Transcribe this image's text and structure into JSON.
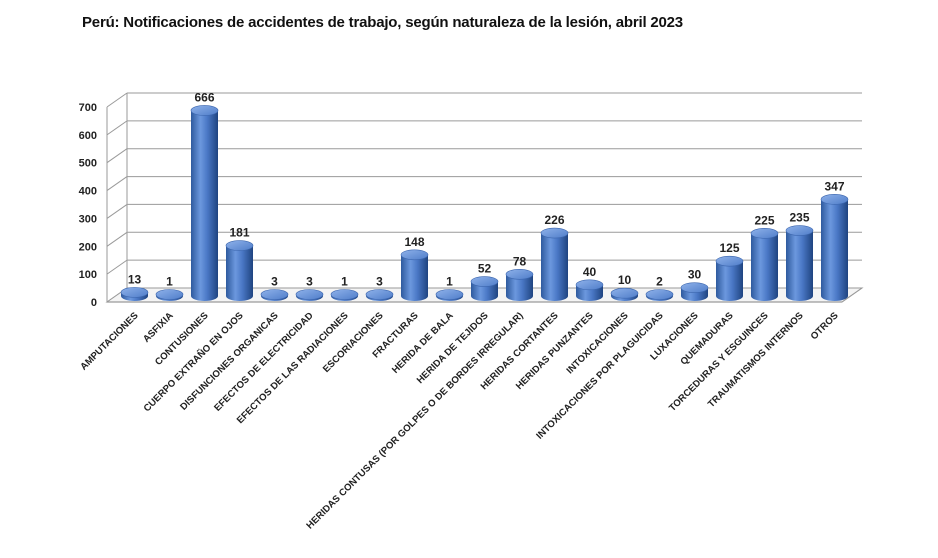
{
  "chart_data": {
    "type": "bar",
    "title": "Perú: Notificaciones de accidentes de trabajo, según naturaleza de la lesión, abril 2023",
    "xlabel": "",
    "ylabel": "",
    "ylim": [
      0,
      700
    ],
    "yticks": [
      "0",
      "100",
      "200",
      "300",
      "400",
      "500",
      "600",
      "700"
    ],
    "grid": true,
    "style": "3d-cylinder",
    "bar_color": "#4472C4",
    "categories": [
      "AMPUTACIONES",
      "ASFIXIA",
      "CONTUSIONES",
      "CUERPO EXTRAÑO EN OJOS",
      "DISFUNCIONES ORGANICAS",
      "EFECTOS DE ELECTRICIDAD",
      "EFECTOS DE LAS RADIACIONES",
      "ESCORIACIONES",
      "FRACTURAS",
      "HERIDA DE BALA",
      "HERIDA DE TEJIDOS",
      "HERIDAS CONTUSAS (POR GOLPES O DE BORDES IRREGULAR)",
      "HERIDAS CORTANTES",
      "HERIDAS PUNZANTES",
      "INTOXICACIONES",
      "INTOXICACIONES POR PLAGUICIDAS",
      "LUXACIONES",
      "QUEMADURAS",
      "TORCEDURAS Y ESGUINCES",
      "TRAUMATISMOS INTERNOS",
      "OTROS"
    ],
    "values": [
      13,
      1,
      666,
      181,
      3,
      3,
      1,
      3,
      148,
      1,
      52,
      78,
      226,
      40,
      10,
      2,
      30,
      125,
      225,
      235,
      347
    ]
  }
}
